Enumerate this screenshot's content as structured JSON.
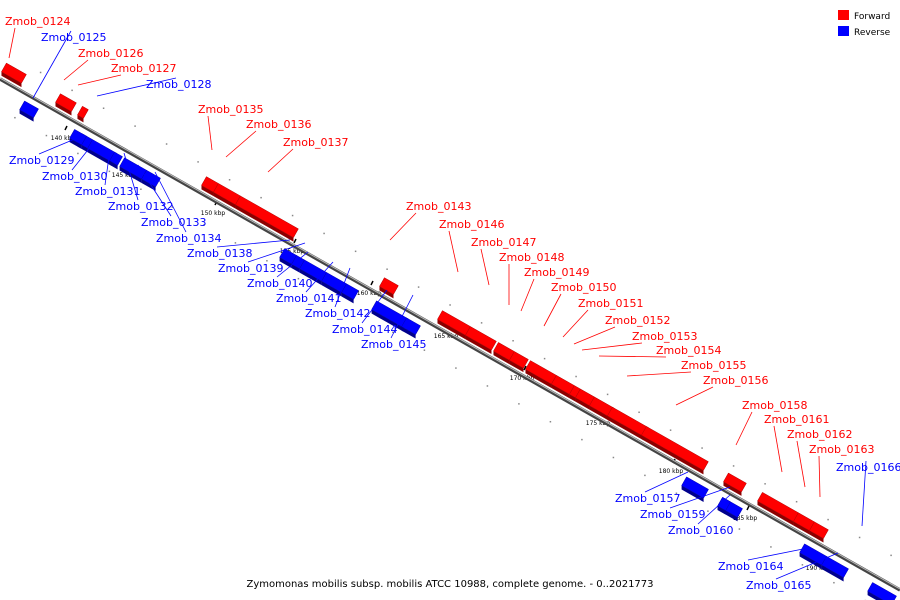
{
  "caption": "Zymomonas mobilis subsp. mobilis ATCC 10988, complete genome. - 0..2021773",
  "legend": [
    {
      "label": "Forward",
      "color": "#ff0000"
    },
    {
      "label": "Reverse",
      "color": "#0000ff"
    }
  ],
  "colors": {
    "forward": "#ff0000",
    "reverse": "#0000ff",
    "backbone": "#888888"
  },
  "ticks": [
    "140 kbp",
    "145 kbp",
    "150 kbp",
    "155 kbp",
    "160 kbp",
    "165 kbp",
    "170 kbp",
    "175 kbp",
    "180 kbp",
    "185 kbp",
    "190 kbp"
  ],
  "genes": [
    {
      "name": "Zmob_0124",
      "strand": "+"
    },
    {
      "name": "Zmob_0125",
      "strand": "-"
    },
    {
      "name": "Zmob_0126",
      "strand": "+"
    },
    {
      "name": "Zmob_0127",
      "strand": "+"
    },
    {
      "name": "Zmob_0128",
      "strand": "-"
    },
    {
      "name": "Zmob_0129",
      "strand": "-"
    },
    {
      "name": "Zmob_0130",
      "strand": "-"
    },
    {
      "name": "Zmob_0131",
      "strand": "-"
    },
    {
      "name": "Zmob_0132",
      "strand": "-"
    },
    {
      "name": "Zmob_0133",
      "strand": "-"
    },
    {
      "name": "Zmob_0134",
      "strand": "-"
    },
    {
      "name": "Zmob_0135",
      "strand": "+"
    },
    {
      "name": "Zmob_0136",
      "strand": "+"
    },
    {
      "name": "Zmob_0137",
      "strand": "+"
    },
    {
      "name": "Zmob_0138",
      "strand": "-"
    },
    {
      "name": "Zmob_0139",
      "strand": "-"
    },
    {
      "name": "Zmob_0140",
      "strand": "-"
    },
    {
      "name": "Zmob_0141",
      "strand": "-"
    },
    {
      "name": "Zmob_0142",
      "strand": "-"
    },
    {
      "name": "Zmob_0143",
      "strand": "+"
    },
    {
      "name": "Zmob_0144",
      "strand": "-"
    },
    {
      "name": "Zmob_0145",
      "strand": "-"
    },
    {
      "name": "Zmob_0146",
      "strand": "+"
    },
    {
      "name": "Zmob_0147",
      "strand": "+"
    },
    {
      "name": "Zmob_0148",
      "strand": "+"
    },
    {
      "name": "Zmob_0149",
      "strand": "+"
    },
    {
      "name": "Zmob_0150",
      "strand": "+"
    },
    {
      "name": "Zmob_0151",
      "strand": "+"
    },
    {
      "name": "Zmob_0152",
      "strand": "+"
    },
    {
      "name": "Zmob_0153",
      "strand": "+"
    },
    {
      "name": "Zmob_0154",
      "strand": "+"
    },
    {
      "name": "Zmob_0155",
      "strand": "+"
    },
    {
      "name": "Zmob_0156",
      "strand": "+"
    },
    {
      "name": "Zmob_0157",
      "strand": "-"
    },
    {
      "name": "Zmob_0158",
      "strand": "+"
    },
    {
      "name": "Zmob_0159",
      "strand": "-"
    },
    {
      "name": "Zmob_0160",
      "strand": "-"
    },
    {
      "name": "Zmob_0161",
      "strand": "+"
    },
    {
      "name": "Zmob_0162",
      "strand": "+"
    },
    {
      "name": "Zmob_0163",
      "strand": "+"
    },
    {
      "name": "Zmob_0164",
      "strand": "-"
    },
    {
      "name": "Zmob_0165",
      "strand": "-"
    },
    {
      "name": "Zmob_0166",
      "strand": "-"
    }
  ]
}
